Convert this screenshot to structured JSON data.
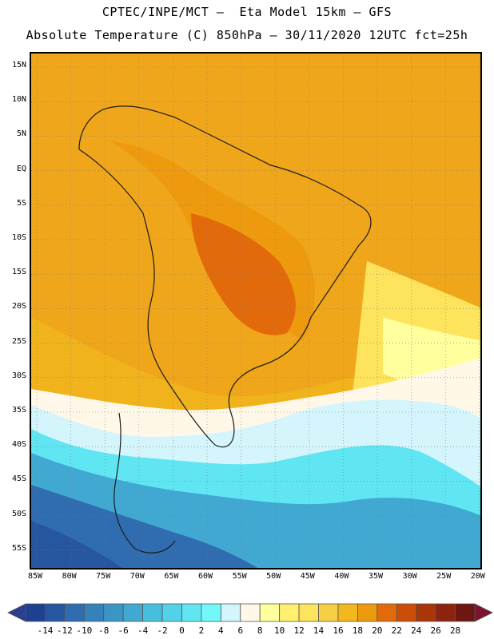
{
  "header": {
    "line1": "CPTEC/INPE/MCT –  Eta Model 15km – GFS",
    "line2": "Absolute Temperature (C) 850hPa – 30/11/2020 12UTC fct=25h"
  },
  "map": {
    "lat_labels": [
      "15N",
      "10N",
      "5N",
      "EQ",
      "5S",
      "10S",
      "15S",
      "20S",
      "25S",
      "30S",
      "35S",
      "40S",
      "45S",
      "50S",
      "55S"
    ],
    "lon_labels": [
      "85W",
      "80W",
      "75W",
      "70W",
      "65W",
      "60W",
      "55W",
      "50W",
      "45W",
      "40W",
      "35W",
      "30W",
      "25W",
      "20W"
    ],
    "gridlines": true
  },
  "colorbar": {
    "labels": [
      "-14",
      "-12",
      "-10",
      "-8",
      "-6",
      "-4",
      "-2",
      "0",
      "2",
      "4",
      "6",
      "8",
      "10",
      "12",
      "14",
      "16",
      "18",
      "20",
      "22",
      "24",
      "26",
      "28"
    ],
    "colors": [
      "#1f3f8f",
      "#2756a0",
      "#2f6cb0",
      "#3582bb",
      "#3b96c6",
      "#41a9d1",
      "#48bedd",
      "#52d2e8",
      "#5fe6f2",
      "#72f8fb",
      "#d3f5fb",
      "#fff8e8",
      "#ffff9d",
      "#fff06e",
      "#fde45c",
      "#f7cf44",
      "#f2b81d",
      "#ee9a0e",
      "#e26a0a",
      "#cc4d08",
      "#a93608",
      "#8b230e",
      "#6e1612"
    ]
  }
}
